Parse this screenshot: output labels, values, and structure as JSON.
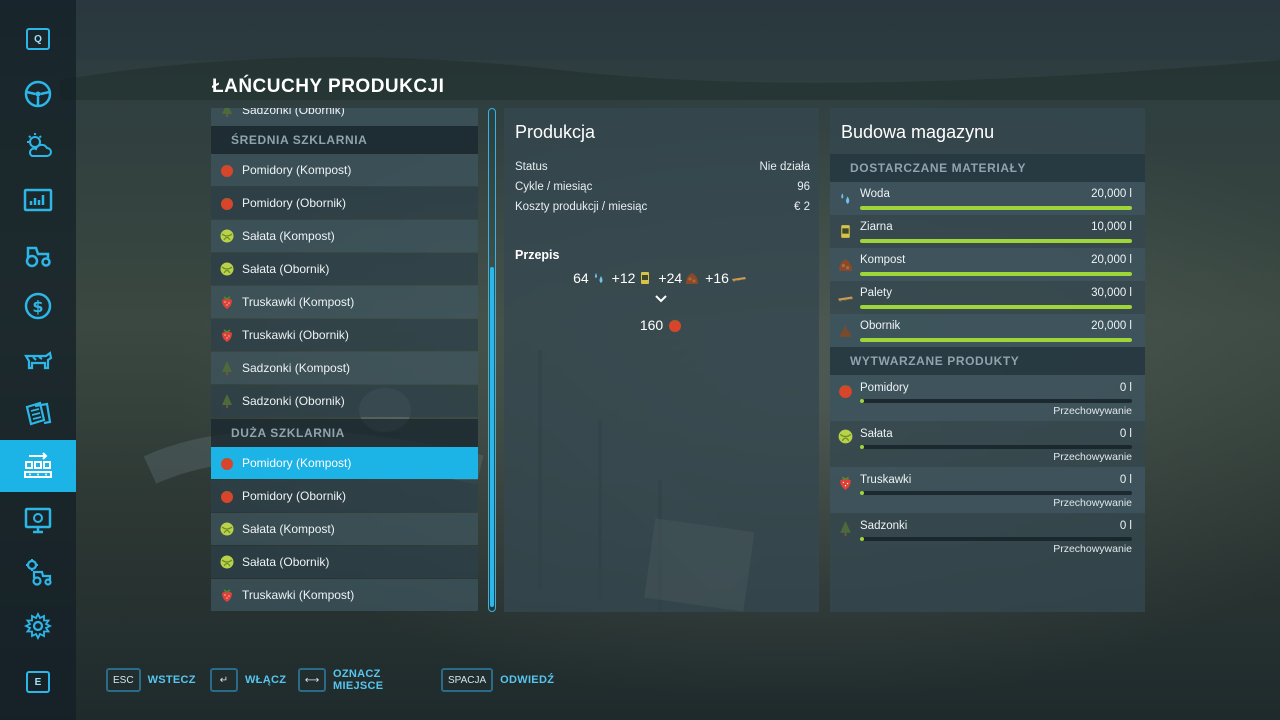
{
  "screen": {
    "title": "ŁAŃCUCHY PRODUKCJI"
  },
  "sidebar": {
    "top_key": "Q",
    "bottom_key": "E",
    "items": [
      {
        "icon": "steering-wheel-icon"
      },
      {
        "icon": "weather-icon"
      },
      {
        "icon": "statistics-icon"
      },
      {
        "icon": "tractor-icon"
      },
      {
        "icon": "finance-icon"
      },
      {
        "icon": "animals-icon"
      },
      {
        "icon": "contracts-icon"
      },
      {
        "icon": "production-chains-icon",
        "active": true
      },
      {
        "icon": "help-icon"
      },
      {
        "icon": "garage-icon"
      },
      {
        "icon": "settings-icon"
      }
    ]
  },
  "list": {
    "partial_top": {
      "label": "Sadzonki (Obornik)",
      "icon": "sapling"
    },
    "groups": [
      {
        "header": "ŚREDNIA SZKLARNIA",
        "items": [
          {
            "label": "Pomidory (Kompost)",
            "icon": "tomato"
          },
          {
            "label": "Pomidory (Obornik)",
            "icon": "tomato"
          },
          {
            "label": "Sałata (Kompost)",
            "icon": "lettuce"
          },
          {
            "label": "Sałata (Obornik)",
            "icon": "lettuce"
          },
          {
            "label": "Truskawki (Kompost)",
            "icon": "strawberry"
          },
          {
            "label": "Truskawki (Obornik)",
            "icon": "strawberry"
          },
          {
            "label": "Sadzonki (Kompost)",
            "icon": "sapling"
          },
          {
            "label": "Sadzonki (Obornik)",
            "icon": "sapling"
          }
        ]
      },
      {
        "header": "DUŻA SZKLARNIA",
        "items": [
          {
            "label": "Pomidory (Kompost)",
            "icon": "tomato",
            "selected": true
          },
          {
            "label": "Pomidory (Obornik)",
            "icon": "tomato"
          },
          {
            "label": "Sałata (Kompost)",
            "icon": "lettuce"
          },
          {
            "label": "Sałata (Obornik)",
            "icon": "lettuce"
          },
          {
            "label": "Truskawki (Kompost)",
            "icon": "strawberry"
          }
        ]
      }
    ]
  },
  "production": {
    "title": "Produkcja",
    "status_label": "Status",
    "status_value": "Nie działa",
    "cycles_label": "Cykle / miesiąc",
    "cycles_value": "96",
    "cost_label": "Koszty produkcji / miesiąc",
    "cost_value": "€ 2",
    "recipe_label": "Przepis",
    "recipe_inputs": [
      {
        "amount": "64",
        "icon": "water"
      },
      {
        "amount": "+12",
        "icon": "seeds"
      },
      {
        "amount": "+24",
        "icon": "compost"
      },
      {
        "amount": "+16",
        "icon": "pallets"
      }
    ],
    "recipe_output": {
      "amount": "160",
      "icon": "tomato"
    }
  },
  "storage": {
    "title": "Budowa magazynu",
    "inputs_header": "DOSTARCZANE MATERIAŁY",
    "inputs": [
      {
        "name": "Woda",
        "value": "20,000 l",
        "fill": 1.0,
        "icon": "water"
      },
      {
        "name": "Ziarna",
        "value": "10,000 l",
        "fill": 1.0,
        "icon": "seeds"
      },
      {
        "name": "Kompost",
        "value": "20,000 l",
        "fill": 1.0,
        "icon": "compost"
      },
      {
        "name": "Palety",
        "value": "30,000 l",
        "fill": 1.0,
        "icon": "pallets"
      },
      {
        "name": "Obornik",
        "value": "20,000 l",
        "fill": 1.0,
        "icon": "manure"
      }
    ],
    "outputs_header": "WYTWARZANE PRODUKTY",
    "outputs": [
      {
        "name": "Pomidory",
        "value": "0 l",
        "mode": "Przechowywanie",
        "fill": 0,
        "icon": "tomato"
      },
      {
        "name": "Sałata",
        "value": "0 l",
        "mode": "Przechowywanie",
        "fill": 0,
        "icon": "lettuce"
      },
      {
        "name": "Truskawki",
        "value": "0 l",
        "mode": "Przechowywanie",
        "fill": 0,
        "icon": "strawberry"
      },
      {
        "name": "Sadzonki",
        "value": "0 l",
        "mode": "Przechowywanie",
        "fill": 0,
        "icon": "sapling"
      }
    ]
  },
  "hints": [
    {
      "key": "ESC",
      "label": "WSTECZ"
    },
    {
      "key": "↵",
      "label": "WŁĄCZ"
    },
    {
      "key": "⟷",
      "label": "OZNACZ MIEJSCE"
    },
    {
      "key": "SPACJA",
      "label": "ODWIEDŹ"
    }
  ],
  "colors": {
    "accent": "#1cb3e6",
    "bar_fill": "#9ed63a",
    "section_text": "#8fa4ad",
    "hint_text": "#57c6ef"
  }
}
